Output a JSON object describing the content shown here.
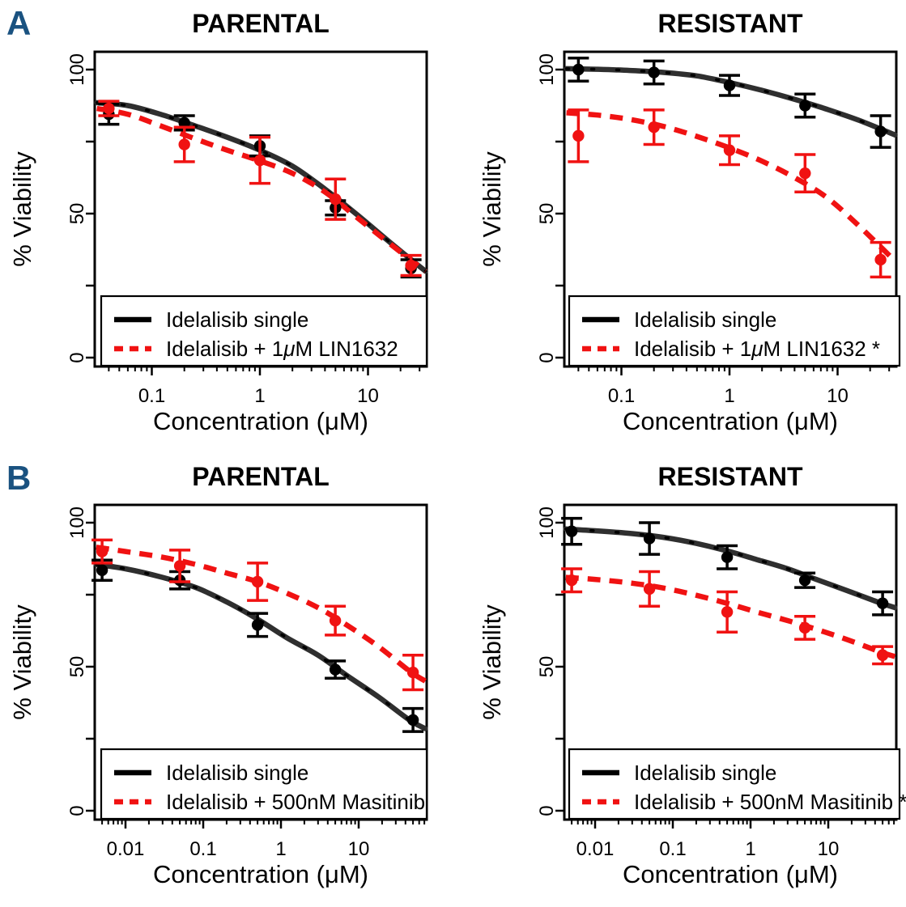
{
  "figure": {
    "background": "#ffffff",
    "section_labels": [
      "A",
      "B"
    ],
    "section_label_color": "#1a5280",
    "colors": {
      "single_agent_point": "#000000",
      "single_agent_curve": "#2f2f2f",
      "combination": "#f01212"
    }
  },
  "chart_data": [
    {
      "id": "a-parental",
      "section": "A",
      "type": "line",
      "title": "PARENTAL",
      "xlabel": "Concentration (μM)",
      "ylabel": "% Viability",
      "x_scale": "log",
      "x_range": [
        0.031,
        34
      ],
      "x_ticks": [
        0.1,
        1,
        10
      ],
      "x_tick_labels": [
        "0.1",
        "1",
        "10"
      ],
      "y_ticks": [
        0,
        25,
        50,
        75,
        100
      ],
      "y_tick_labels": [
        "0",
        "",
        "50",
        "",
        "100"
      ],
      "grid": false,
      "legend_position": "bottom-left",
      "series": [
        {
          "name": "Idelalisib single",
          "legend_label": "Idelalisib single",
          "line": "solid",
          "color": "#000000",
          "x": [
            0.04,
            0.2,
            1,
            5,
            25
          ],
          "y": [
            84.5,
            81.5,
            73.5,
            52,
            31
          ],
          "err": [
            3.5,
            2.5,
            3.5,
            2.5,
            3
          ],
          "fit_curve": [
            [
              0.031,
              88.5
            ],
            [
              0.06,
              87.5
            ],
            [
              0.12,
              84.5
            ],
            [
              0.25,
              80.5
            ],
            [
              0.5,
              76.5
            ],
            [
              1,
              72
            ],
            [
              2,
              66.5
            ],
            [
              4,
              58.5
            ],
            [
              8,
              49.5
            ],
            [
              16,
              40
            ],
            [
              34,
              30
            ]
          ]
        },
        {
          "name": "Idelalisib + 1μM LIN1632",
          "legend_label": "Idelalisib + 1μM LIN1632",
          "line": "dashed",
          "color": "#f01212",
          "x": [
            0.04,
            0.2,
            1,
            5,
            25
          ],
          "y": [
            86.5,
            74,
            68.5,
            55,
            32
          ],
          "err": [
            2.5,
            6,
            8,
            7,
            3.5
          ],
          "fit_curve": [
            [
              0.031,
              86.5
            ],
            [
              0.06,
              84.5
            ],
            [
              0.12,
              80.5
            ],
            [
              0.25,
              76
            ],
            [
              0.5,
              72
            ],
            [
              1,
              68.3
            ],
            [
              2,
              64
            ],
            [
              4,
              57.5
            ],
            [
              8,
              48.5
            ],
            [
              16,
              39.5
            ],
            [
              34,
              30
            ]
          ]
        }
      ]
    },
    {
      "id": "a-resistant",
      "section": "A",
      "type": "line",
      "title": "RESISTANT",
      "xlabel": "Concentration (μM)",
      "ylabel": "% Viability",
      "x_scale": "log",
      "x_range": [
        0.031,
        34
      ],
      "x_ticks": [
        0.1,
        1,
        10
      ],
      "x_tick_labels": [
        "0.1",
        "1",
        "10"
      ],
      "y_ticks": [
        0,
        25,
        50,
        75,
        100
      ],
      "y_tick_labels": [
        "0",
        "",
        "50",
        "",
        "100"
      ],
      "grid": false,
      "legend_position": "bottom-left",
      "series": [
        {
          "name": "Idelalisib single",
          "legend_label": "Idelalisib single",
          "line": "solid",
          "color": "#000000",
          "x": [
            0.04,
            0.2,
            1,
            5,
            25
          ],
          "y": [
            100,
            99,
            94.5,
            87.5,
            78.5
          ],
          "err": [
            4,
            4,
            3.5,
            4,
            5.5
          ],
          "fit_curve": [
            [
              0.031,
              100.3
            ],
            [
              0.06,
              100.1
            ],
            [
              0.12,
              99.7
            ],
            [
              0.25,
              99
            ],
            [
              0.5,
              97.8
            ],
            [
              1,
              95.5
            ],
            [
              2,
              92.8
            ],
            [
              4,
              89.7
            ],
            [
              8,
              86.2
            ],
            [
              16,
              82.3
            ],
            [
              34,
              77.3
            ]
          ]
        },
        {
          "name": "Idelalisib + 1μM LIN1632",
          "legend_label": "Idelalisib + 1μM LIN1632 *",
          "significance": "*",
          "line": "dashed",
          "color": "#f01212",
          "x": [
            0.04,
            0.2,
            1,
            5,
            25
          ],
          "y": [
            77,
            80,
            72,
            64,
            34
          ],
          "err": [
            9,
            6,
            5,
            6.5,
            6
          ],
          "fit_curve": [
            [
              0.031,
              85
            ],
            [
              0.06,
              84.2
            ],
            [
              0.12,
              82.7
            ],
            [
              0.25,
              80.2
            ],
            [
              0.5,
              76.8
            ],
            [
              1,
              72.8
            ],
            [
              2,
              68.2
            ],
            [
              4,
              62.5
            ],
            [
              8,
              55.5
            ],
            [
              16,
              45.5
            ],
            [
              34,
              33.5
            ]
          ]
        }
      ]
    },
    {
      "id": "b-parental",
      "section": "B",
      "type": "line",
      "title": "PARENTAL",
      "xlabel": "Concentration (μM)",
      "ylabel": "% Viability",
      "x_scale": "log",
      "x_range": [
        0.0041,
        72
      ],
      "x_ticks": [
        0.01,
        0.1,
        1,
        10
      ],
      "x_tick_labels": [
        "0.01",
        "0.1",
        "1",
        "10"
      ],
      "y_ticks": [
        0,
        25,
        50,
        75,
        100
      ],
      "y_tick_labels": [
        "0",
        "",
        "50",
        "",
        "100"
      ],
      "grid": false,
      "legend_position": "bottom-left",
      "series": [
        {
          "name": "Idelalisib single",
          "legend_label": "Idelalisib single",
          "line": "solid",
          "color": "#000000",
          "x": [
            0.005,
            0.05,
            0.5,
            5,
            50
          ],
          "y": [
            83.5,
            80,
            64.5,
            49,
            31.5
          ],
          "err": [
            3.5,
            3,
            4,
            3,
            4
          ],
          "fit_curve": [
            [
              0.0042,
              85.5
            ],
            [
              0.01,
              84
            ],
            [
              0.03,
              81
            ],
            [
              0.08,
              77.5
            ],
            [
              0.2,
              72.5
            ],
            [
              0.5,
              66.5
            ],
            [
              1.2,
              60
            ],
            [
              3,
              54
            ],
            [
              7,
              47
            ],
            [
              18,
              39.5
            ],
            [
              45,
              31.5
            ],
            [
              72,
              28.5
            ]
          ]
        },
        {
          "name": "Idelalisib + 500nM Masitinib",
          "legend_label": "Idelalisib + 500nM Masitinib",
          "line": "dashed",
          "color": "#f01212",
          "x": [
            0.005,
            0.05,
            0.5,
            5,
            50
          ],
          "y": [
            90,
            85,
            79.5,
            66,
            48
          ],
          "err": [
            4,
            5.5,
            6.5,
            5,
            6
          ],
          "fit_curve": [
            [
              0.0042,
              91.5
            ],
            [
              0.01,
              90
            ],
            [
              0.03,
              88
            ],
            [
              0.08,
              85.5
            ],
            [
              0.2,
              82.5
            ],
            [
              0.5,
              79.5
            ],
            [
              1.2,
              75.5
            ],
            [
              3,
              70.5
            ],
            [
              7,
              64.5
            ],
            [
              18,
              57
            ],
            [
              45,
              48.5
            ],
            [
              72,
              45
            ]
          ]
        }
      ]
    },
    {
      "id": "b-resistant",
      "section": "B",
      "type": "line",
      "title": "RESISTANT",
      "xlabel": "Concentration (μM)",
      "ylabel": "% Viability",
      "x_scale": "log",
      "x_range": [
        0.0041,
        72
      ],
      "x_ticks": [
        0.01,
        0.1,
        1,
        10
      ],
      "x_tick_labels": [
        "0.01",
        "0.1",
        "1",
        "10"
      ],
      "y_ticks": [
        0,
        25,
        50,
        75,
        100
      ],
      "y_tick_labels": [
        "0",
        "",
        "50",
        "",
        "100"
      ],
      "grid": false,
      "legend_position": "bottom-left",
      "series": [
        {
          "name": "Idelalisib single",
          "legend_label": "Idelalisib single",
          "line": "solid",
          "color": "#000000",
          "x": [
            0.005,
            0.05,
            0.5,
            5,
            50
          ],
          "y": [
            97,
            94.5,
            88,
            80,
            72
          ],
          "err": [
            4.5,
            5.5,
            4,
            2.5,
            4
          ],
          "fit_curve": [
            [
              0.0042,
              97.8
            ],
            [
              0.01,
              97.2
            ],
            [
              0.03,
              96.2
            ],
            [
              0.08,
              94.8
            ],
            [
              0.2,
              92.8
            ],
            [
              0.5,
              90.2
            ],
            [
              1.2,
              87.2
            ],
            [
              3,
              84
            ],
            [
              7,
              80.3
            ],
            [
              18,
              76.3
            ],
            [
              45,
              72.3
            ],
            [
              72,
              70.5
            ]
          ]
        },
        {
          "name": "Idelalisib + 500nM Masitinib",
          "legend_label": "Idelalisib + 500nM Masitinib *",
          "significance": "*",
          "line": "dashed",
          "color": "#f01212",
          "x": [
            0.005,
            0.05,
            0.5,
            5,
            50
          ],
          "y": [
            80,
            77,
            69,
            63.5,
            54
          ],
          "err": [
            4,
            6,
            7,
            4,
            3
          ],
          "fit_curve": [
            [
              0.0042,
              81
            ],
            [
              0.01,
              80.3
            ],
            [
              0.03,
              79
            ],
            [
              0.08,
              77.2
            ],
            [
              0.2,
              74.8
            ],
            [
              0.5,
              72
            ],
            [
              1.2,
              69
            ],
            [
              3,
              66
            ],
            [
              7,
              63
            ],
            [
              18,
              59.3
            ],
            [
              45,
              55.3
            ],
            [
              72,
              53.5
            ]
          ]
        }
      ]
    }
  ]
}
